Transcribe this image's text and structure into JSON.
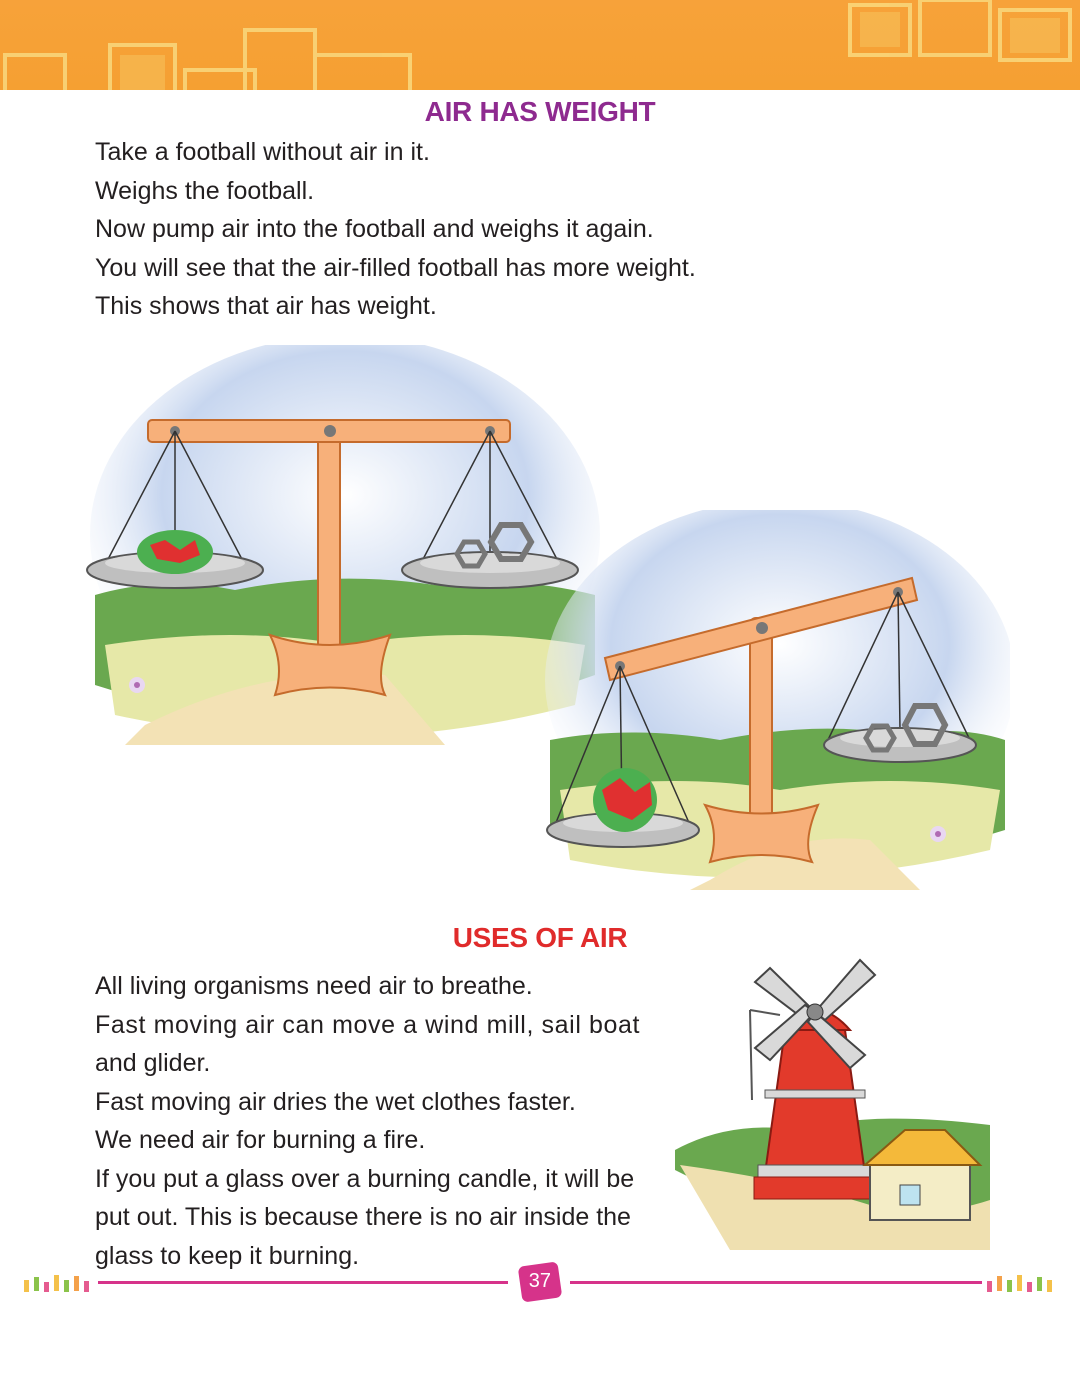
{
  "section1": {
    "heading": "AIR HAS WEIGHT",
    "lines": [
      "Take a football without air in it.",
      "Weighs the football.",
      "Now pump air into the football and weighs it again.",
      "You will see that the air-filled football has more weight.",
      "This shows that air has weight."
    ]
  },
  "section2": {
    "heading": "USES OF AIR",
    "lines": [
      "All living organisms need air to breathe.",
      "Fast moving air can move a wind mill, sail boat",
      "and glider.",
      "Fast moving air dries the wet clothes faster.",
      "We need air for burning a fire.",
      "If you put a glass over a burning candle, it will be",
      "put out. This is because there is no air inside the",
      "glass to keep it burning."
    ]
  },
  "footer": {
    "page_number": "37"
  },
  "colors": {
    "header_band": "#f5a032",
    "heading1": "#8e2a8f",
    "heading2": "#e02b2b",
    "footer_accent": "#d6338a"
  }
}
